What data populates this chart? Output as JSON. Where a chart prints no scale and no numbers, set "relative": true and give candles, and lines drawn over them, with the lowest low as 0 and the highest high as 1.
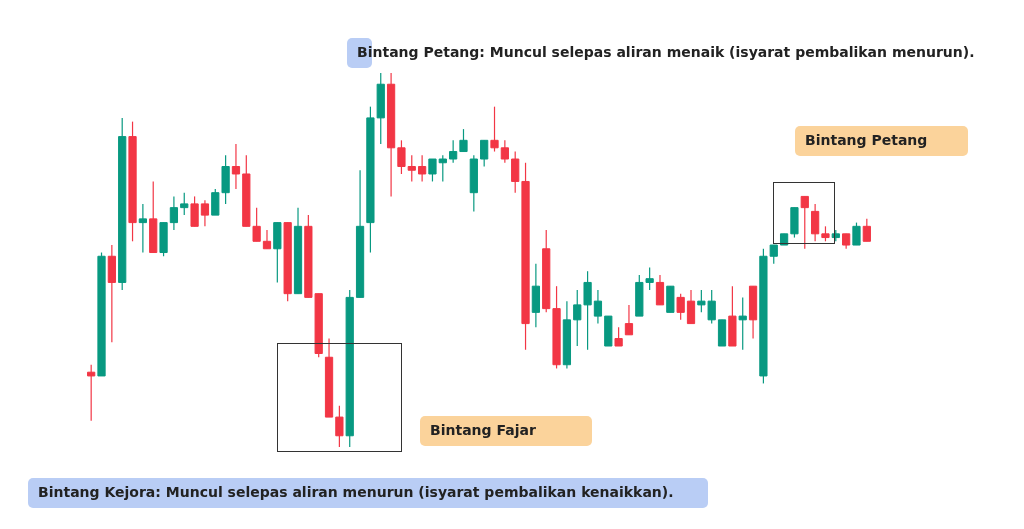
{
  "chart_data": {
    "type": "candlestick",
    "relative": true,
    "categories": [
      null,
      null,
      null,
      null,
      null,
      null,
      null,
      null,
      null,
      null,
      null,
      null,
      null,
      null,
      null,
      null,
      null,
      null,
      null,
      null,
      null,
      null,
      null,
      null,
      null,
      null,
      null,
      null,
      null,
      null,
      null,
      null,
      null,
      null,
      null,
      null,
      null,
      null,
      null,
      null,
      null,
      null,
      null,
      null,
      null,
      null,
      null,
      null,
      null,
      null,
      null,
      null,
      null,
      null,
      null,
      null,
      null,
      null,
      null,
      null,
      null,
      null,
      null,
      null,
      null,
      null,
      null,
      null,
      null,
      null,
      null,
      null,
      null,
      null,
      null,
      null
    ],
    "ohlc": [
      [
        0.2,
        0.22,
        0.07,
        0.19
      ],
      [
        0.19,
        0.52,
        0.19,
        0.51
      ],
      [
        0.51,
        0.54,
        0.28,
        0.44
      ],
      [
        0.44,
        0.88,
        0.42,
        0.83
      ],
      [
        0.83,
        0.87,
        0.55,
        0.6
      ],
      [
        0.6,
        0.65,
        0.52,
        0.61
      ],
      [
        0.61,
        0.71,
        0.52,
        0.52
      ],
      [
        0.52,
        0.6,
        0.51,
        0.6
      ],
      [
        0.6,
        0.67,
        0.58,
        0.64
      ],
      [
        0.64,
        0.68,
        0.62,
        0.65
      ],
      [
        0.65,
        0.67,
        0.59,
        0.59
      ],
      [
        0.65,
        0.66,
        0.59,
        0.62
      ],
      [
        0.62,
        0.69,
        0.62,
        0.68
      ],
      [
        0.68,
        0.78,
        0.65,
        0.75
      ],
      [
        0.75,
        0.81,
        0.69,
        0.73
      ],
      [
        0.73,
        0.78,
        0.59,
        0.59
      ],
      [
        0.59,
        0.64,
        0.55,
        0.55
      ],
      [
        0.55,
        0.58,
        0.53,
        0.53
      ],
      [
        0.53,
        0.6,
        0.44,
        0.6
      ],
      [
        0.6,
        0.6,
        0.39,
        0.41
      ],
      [
        0.41,
        0.64,
        0.41,
        0.59
      ],
      [
        0.59,
        0.62,
        0.4,
        0.4
      ],
      [
        0.41,
        0.41,
        0.24,
        0.25
      ],
      [
        0.24,
        0.29,
        0.08,
        0.08
      ],
      [
        0.08,
        0.11,
        0,
        0.03
      ],
      [
        0.03,
        0.42,
        0,
        0.4
      ],
      [
        0.4,
        0.74,
        0.4,
        0.59
      ],
      [
        0.6,
        0.91,
        0.52,
        0.88
      ],
      [
        0.88,
        1,
        0.81,
        0.97
      ],
      [
        0.97,
        1,
        0.67,
        0.8
      ],
      [
        0.8,
        0.82,
        0.73,
        0.75
      ],
      [
        0.75,
        0.78,
        0.71,
        0.74
      ],
      [
        0.75,
        0.78,
        0.71,
        0.73
      ],
      [
        0.73,
        0.77,
        0.71,
        0.77
      ],
      [
        0.76,
        0.78,
        0.71,
        0.77
      ],
      [
        0.77,
        0.82,
        0.76,
        0.79
      ],
      [
        0.79,
        0.85,
        0.79,
        0.82
      ],
      [
        0.68,
        0.78,
        0.63,
        0.77
      ],
      [
        0.77,
        0.82,
        0.75,
        0.82
      ],
      [
        0.82,
        0.91,
        0.79,
        0.8
      ],
      [
        0.8,
        0.82,
        0.76,
        0.77
      ],
      [
        0.77,
        0.79,
        0.68,
        0.71
      ],
      [
        0.71,
        0.76,
        0.26,
        0.33
      ],
      [
        0.36,
        0.49,
        0.32,
        0.43
      ],
      [
        0.53,
        0.58,
        0.36,
        0.37
      ],
      [
        0.37,
        0.43,
        0.21,
        0.22
      ],
      [
        0.22,
        0.39,
        0.21,
        0.34
      ],
      [
        0.34,
        0.42,
        0.27,
        0.38
      ],
      [
        0.38,
        0.47,
        0.26,
        0.44
      ],
      [
        0.35,
        0.42,
        0.33,
        0.39
      ],
      [
        0.27,
        0.35,
        0.27,
        0.35
      ],
      [
        0.29,
        0.32,
        0.27,
        0.27
      ],
      [
        0.33,
        0.38,
        0.3,
        0.3
      ],
      [
        0.35,
        0.46,
        0.35,
        0.44
      ],
      [
        0.44,
        0.48,
        0.42,
        0.45
      ],
      [
        0.44,
        0.46,
        0.38,
        0.38
      ],
      [
        0.36,
        0.43,
        0.36,
        0.43
      ],
      [
        0.4,
        0.41,
        0.34,
        0.36
      ],
      [
        0.39,
        0.42,
        0.33,
        0.33
      ],
      [
        0.38,
        0.42,
        0.36,
        0.39
      ],
      [
        0.34,
        0.42,
        0.33,
        0.39
      ],
      [
        0.27,
        0.34,
        0.27,
        0.34
      ],
      [
        0.35,
        0.43,
        0.27,
        0.27
      ],
      [
        0.34,
        0.4,
        0.26,
        0.35
      ],
      [
        0.43,
        0.43,
        0.29,
        0.34
      ],
      [
        0.19,
        0.53,
        0.17,
        0.51
      ],
      [
        0.51,
        0.54,
        0.49,
        0.54
      ],
      [
        0.54,
        0.57,
        0.54,
        0.57
      ],
      [
        0.57,
        0.64,
        0.56,
        0.64
      ],
      [
        0.67,
        0.67,
        0.53,
        0.64
      ],
      [
        0.63,
        0.65,
        0.55,
        0.57
      ],
      [
        0.57,
        0.59,
        0.55,
        0.56
      ],
      [
        0.56,
        0.58,
        0.55,
        0.57
      ],
      [
        0.57,
        0.57,
        0.53,
        0.54
      ],
      [
        0.54,
        0.6,
        0.54,
        0.59
      ],
      [
        0.59,
        0.61,
        0.55,
        0.55
      ]
    ],
    "colors": [
      "#f23645",
      "#089981",
      "#f23645",
      "#089981",
      "#f23645",
      "#089981",
      "#f23645",
      "#089981",
      "#089981",
      "#089981",
      "#f23645",
      "#f23645",
      "#089981",
      "#089981",
      "#f23645",
      "#f23645",
      "#f23645",
      "#f23645",
      "#089981",
      "#f23645",
      "#089981",
      "#f23645",
      "#f23645",
      "#f23645",
      "#f23645",
      "#089981",
      "#089981",
      "#089981",
      "#089981",
      "#f23645",
      "#f23645",
      "#f23645",
      "#f23645",
      "#089981",
      "#089981",
      "#089981",
      "#089981",
      "#089981",
      "#089981",
      "#f23645",
      "#f23645",
      "#f23645",
      "#f23645",
      "#089981",
      "#f23645",
      "#f23645",
      "#089981",
      "#089981",
      "#089981",
      "#089981",
      "#089981",
      "#f23645",
      "#f23645",
      "#089981",
      "#089981",
      "#f23645",
      "#089981",
      "#f23645",
      "#f23645",
      "#089981",
      "#089981",
      "#089981",
      "#f23645",
      "#089981",
      "#f23645",
      "#089981",
      "#089981",
      "#089981",
      "#089981",
      "#f23645",
      "#f23645",
      "#f23645",
      "#089981",
      "#f23645",
      "#089981",
      "#f23645"
    ],
    "annotations": [
      "Bintang Petang: Muncul selepas aliran menaik (isyarat pembalikan menurun).",
      "Bintang Kejora: Muncul selepas aliran menurun (isyarat pembalikan kenaikkan).",
      "Bintang Fajar",
      "Bintang Petang"
    ]
  }
}
